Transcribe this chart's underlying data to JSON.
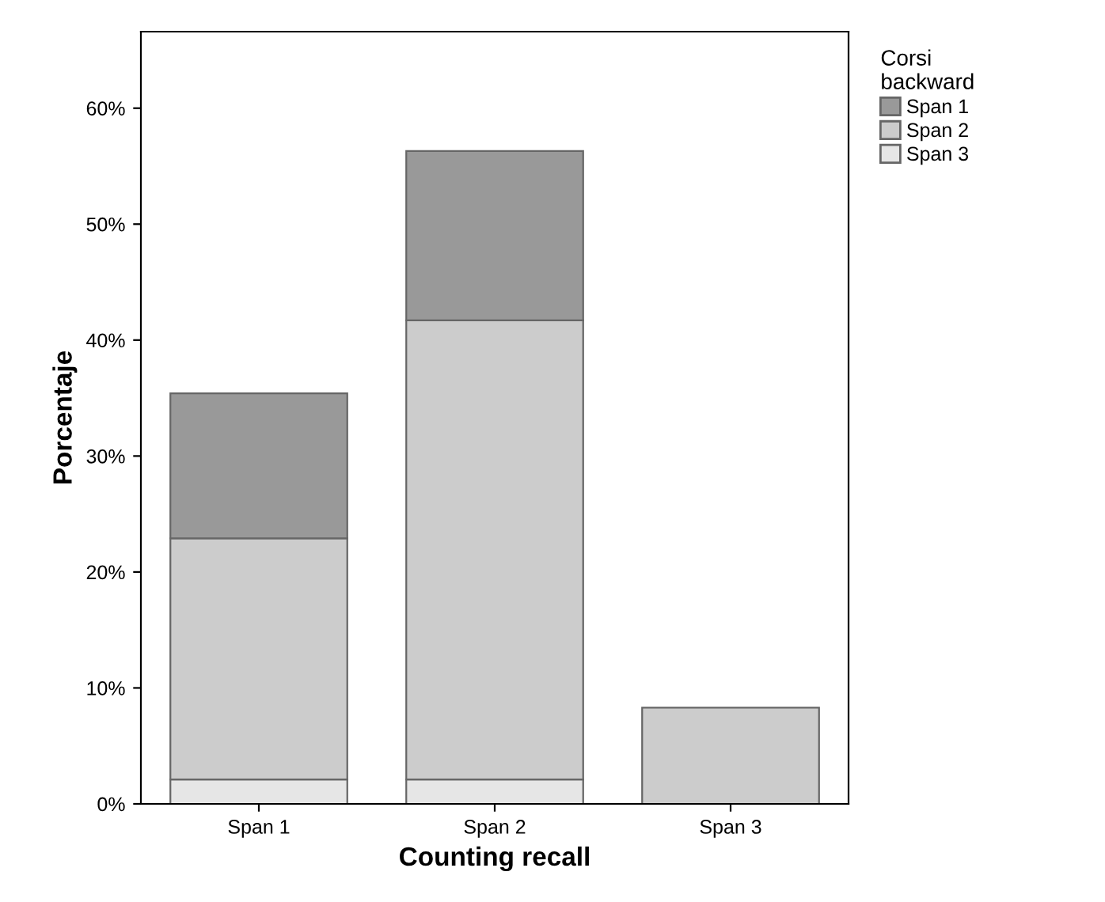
{
  "chart_data": {
    "type": "bar",
    "stacked": true,
    "xlabel": "Counting recall",
    "ylabel": "Porcentaje",
    "legend_title": "Corsi\nbackward",
    "legend": "top right",
    "categories": [
      "Span 1",
      "Span 2",
      "Span 3"
    ],
    "series": [
      {
        "name": "Span 3",
        "color": "#e6e6e6",
        "values": [
          2.1,
          2.1,
          null
        ]
      },
      {
        "name": "Span 2",
        "color": "#cccccc",
        "values": [
          20.8,
          39.6,
          8.3
        ]
      },
      {
        "name": "Span 1",
        "color": "#999999",
        "values": [
          12.5,
          14.6,
          null
        ]
      }
    ],
    "ylim": [
      0,
      66.6
    ],
    "yticks": [
      {
        "value": 0,
        "label": "0%"
      },
      {
        "value": 10,
        "label": "10%"
      },
      {
        "value": 20,
        "label": "20%"
      },
      {
        "value": 30,
        "label": "30%"
      },
      {
        "value": 40,
        "label": "40%"
      },
      {
        "value": 50,
        "label": "50%"
      },
      {
        "value": 60,
        "label": "60%"
      }
    ],
    "grid": false
  }
}
